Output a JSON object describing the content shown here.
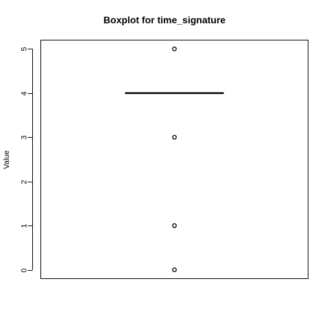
{
  "chart_data": {
    "type": "boxplot",
    "title": "Boxplot for time_signature",
    "xlabel": "",
    "ylabel": "Value",
    "ylim": [
      -0.2,
      5.2
    ],
    "yticks": [
      0,
      1,
      2,
      3,
      4,
      5
    ],
    "ytick_labels": [
      "0",
      "1",
      "2",
      "3",
      "4",
      "5"
    ],
    "median": 4,
    "q1": 4,
    "q3": 4,
    "whisker_low": 4,
    "whisker_high": 4,
    "outliers": [
      5,
      3,
      1,
      0
    ],
    "grid": false
  }
}
